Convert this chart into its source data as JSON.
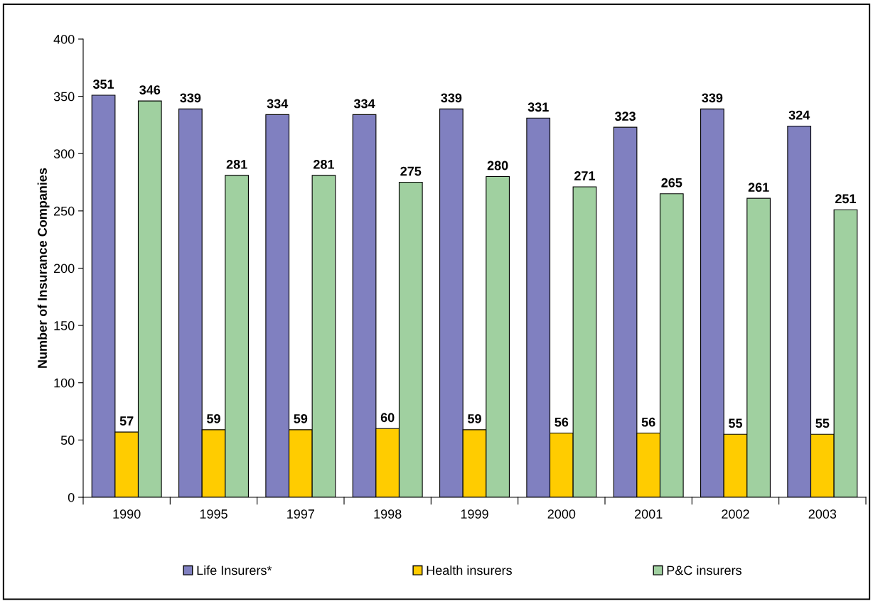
{
  "chart_data": {
    "type": "bar",
    "ylabel": "Number of Insurance Companies",
    "categories": [
      "1990",
      "1995",
      "1997",
      "1998",
      "1999",
      "2000",
      "2001",
      "2002",
      "2003"
    ],
    "series": [
      {
        "name": "Life Insurers*",
        "color": "#8080c0",
        "values": [
          351,
          339,
          334,
          334,
          339,
          331,
          323,
          339,
          324
        ]
      },
      {
        "name": "Health insurers",
        "color": "#ffcc00",
        "values": [
          57,
          59,
          59,
          60,
          59,
          56,
          56,
          55,
          55
        ]
      },
      {
        "name": "P&C insurers",
        "color": "#a0d0a0",
        "values": [
          346,
          281,
          281,
          275,
          280,
          271,
          265,
          261,
          251
        ]
      }
    ],
    "ylim": [
      0,
      400
    ],
    "yticks": [
      0,
      50,
      100,
      150,
      200,
      250,
      300,
      350,
      400
    ],
    "data_labels": true,
    "legend": "bottom",
    "grid": false
  }
}
